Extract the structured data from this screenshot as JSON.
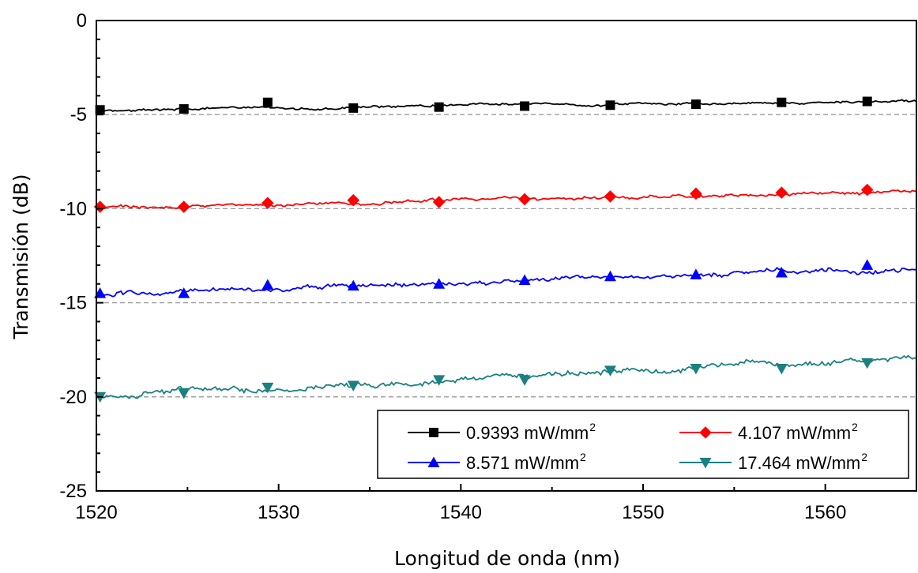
{
  "chart_data": {
    "type": "line",
    "xlabel": "Longitud de onda (nm)",
    "ylabel": "Transmisión (dB)",
    "xlim": [
      1520,
      1565
    ],
    "ylim": [
      -25,
      0
    ],
    "x_ticks": [
      "1520",
      "1530",
      "1540",
      "1550",
      "1560"
    ],
    "y_ticks": [
      "0",
      "-5",
      "-10",
      "-15",
      "-20",
      "-25"
    ],
    "reference_lines": [
      -5,
      -10,
      -15,
      -20
    ],
    "legend_position": "bottom-right",
    "marker_x": [
      1520.2,
      1524.8,
      1529.4,
      1534.1,
      1538.8,
      1543.5,
      1548.2,
      1552.9,
      1557.6,
      1562.3
    ],
    "series": [
      {
        "name_main": "0.9393 mW/mm",
        "name_sup": "2",
        "color": "#000000",
        "marker": "square",
        "start": -4.75,
        "end": -4.3,
        "noise": 0.09,
        "marker_values": [
          -4.75,
          -4.7,
          -4.35,
          -4.65,
          -4.6,
          -4.55,
          -4.5,
          -4.45,
          -4.35,
          -4.3
        ]
      },
      {
        "name_main": "4.107 mW/mm",
        "name_sup": "2",
        "color": "#ff0000",
        "marker": "diamond",
        "start": -9.95,
        "end": -9.05,
        "noise": 0.12,
        "marker_values": [
          -9.9,
          -9.9,
          -9.7,
          -9.55,
          -9.65,
          -9.5,
          -9.35,
          -9.2,
          -9.15,
          -9.0
        ]
      },
      {
        "name_main": "8.571 mW/mm",
        "name_sup": "2",
        "color": "#0000ff",
        "marker": "triangle-up",
        "start": -14.6,
        "end": -13.2,
        "noise": 0.18,
        "marker_values": [
          -14.5,
          -14.5,
          -14.05,
          -14.1,
          -14.0,
          -13.8,
          -13.6,
          -13.5,
          -13.4,
          -13.0
        ]
      },
      {
        "name_main": "17.464 mW/mm",
        "name_sup": "2",
        "color": "#1a8080",
        "marker": "triangle-down",
        "start": -20.0,
        "end": -17.9,
        "noise": 0.22,
        "marker_values": [
          -20.0,
          -19.8,
          -19.5,
          -19.4,
          -19.1,
          -19.1,
          -18.6,
          -18.5,
          -18.5,
          -18.2
        ]
      }
    ]
  }
}
